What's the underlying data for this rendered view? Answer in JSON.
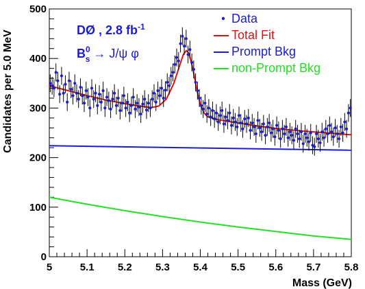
{
  "chart_data": {
    "type": "scatter",
    "xlabel": "Mass  (GeV)",
    "ylabel": "Candidates per 5.0 MeV",
    "xlim": [
      5.0,
      5.8
    ],
    "ylim": [
      0,
      500
    ],
    "x_ticks": [
      5,
      5.1,
      5.2,
      5.3,
      5.4,
      5.5,
      5.6,
      5.7,
      5.8
    ],
    "x_tick_labels": [
      "5",
      "5.1",
      "5.2",
      "5.3",
      "5.4",
      "5.5",
      "5.6",
      "5.7",
      "5.8"
    ],
    "y_ticks": [
      0,
      100,
      200,
      300,
      400,
      500
    ],
    "y_tick_labels": [
      "0",
      "100",
      "200",
      "300",
      "400",
      "500"
    ],
    "grid": false,
    "legend_position": "top-right",
    "annotations": {
      "experiment": "DØ , 2.8 fb",
      "experiment_sup": "-1",
      "decay_main": "B",
      "decay_sup": "0",
      "decay_sub": "s",
      "decay_rest": " → J/ψ φ"
    },
    "legend": [
      {
        "label": "Data",
        "color": "#1a1ad8",
        "marker": "dot"
      },
      {
        "label": "Total Fit",
        "color": "#e01010",
        "marker": "line"
      },
      {
        "label": "Prompt Bkg",
        "color": "#1a1ad8",
        "marker": "line"
      },
      {
        "label": "non-Prompt Bkg",
        "color": "#22e022",
        "marker": "line"
      }
    ],
    "series": [
      {
        "name": "Data",
        "kind": "points",
        "color": "#1a1ad8",
        "error": 18,
        "points": [
          [
            5.0025,
            350
          ],
          [
            5.0075,
            345
          ],
          [
            5.0125,
            340
          ],
          [
            5.0175,
            372
          ],
          [
            5.0225,
            355
          ],
          [
            5.0275,
            328
          ],
          [
            5.0325,
            365
          ],
          [
            5.0375,
            330
          ],
          [
            5.0425,
            348
          ],
          [
            5.0475,
            312
          ],
          [
            5.0525,
            355
          ],
          [
            5.0575,
            338
          ],
          [
            5.0625,
            325
          ],
          [
            5.0675,
            350
          ],
          [
            5.0725,
            330
          ],
          [
            5.0775,
            318
          ],
          [
            5.0825,
            342
          ],
          [
            5.0875,
            325
          ],
          [
            5.0925,
            310
          ],
          [
            5.0975,
            335
          ],
          [
            5.1025,
            322
          ],
          [
            5.1075,
            300
          ],
          [
            5.1125,
            340
          ],
          [
            5.1175,
            318
          ],
          [
            5.1225,
            330
          ],
          [
            5.1275,
            305
          ],
          [
            5.1325,
            328
          ],
          [
            5.1375,
            312
          ],
          [
            5.1425,
            335
          ],
          [
            5.1475,
            300
          ],
          [
            5.1525,
            322
          ],
          [
            5.1575,
            315
          ],
          [
            5.1625,
            298
          ],
          [
            5.1675,
            318
          ],
          [
            5.1725,
            330
          ],
          [
            5.1775,
            305
          ],
          [
            5.1825,
            320
          ],
          [
            5.1875,
            295
          ],
          [
            5.1925,
            310
          ],
          [
            5.1975,
            325
          ],
          [
            5.2025,
            300
          ],
          [
            5.2075,
            312
          ],
          [
            5.2125,
            290
          ],
          [
            5.2175,
            305
          ],
          [
            5.2225,
            322
          ],
          [
            5.2275,
            298
          ],
          [
            5.2325,
            310
          ],
          [
            5.2375,
            302
          ],
          [
            5.2425,
            288
          ],
          [
            5.2475,
            308
          ],
          [
            5.2525,
            318
          ],
          [
            5.2575,
            296
          ],
          [
            5.2625,
            310
          ],
          [
            5.2675,
            300
          ],
          [
            5.2725,
            318
          ],
          [
            5.2775,
            330
          ],
          [
            5.2825,
            312
          ],
          [
            5.2875,
            335
          ],
          [
            5.2925,
            325
          ],
          [
            5.2975,
            340
          ],
          [
            5.3025,
            320
          ],
          [
            5.3075,
            336
          ],
          [
            5.3125,
            352
          ],
          [
            5.3175,
            345
          ],
          [
            5.3225,
            365
          ],
          [
            5.3275,
            372
          ],
          [
            5.3325,
            388
          ],
          [
            5.3375,
            402
          ],
          [
            5.3425,
            395
          ],
          [
            5.3475,
            430
          ],
          [
            5.3525,
            445
          ],
          [
            5.3575,
            425
          ],
          [
            5.3625,
            440
          ],
          [
            5.3675,
            408
          ],
          [
            5.3725,
            418
          ],
          [
            5.3775,
            392
          ],
          [
            5.3825,
            378
          ],
          [
            5.3875,
            352
          ],
          [
            5.3925,
            335
          ],
          [
            5.3975,
            320
          ],
          [
            5.4025,
            305
          ],
          [
            5.4075,
            298
          ],
          [
            5.4125,
            310
          ],
          [
            5.4175,
            288
          ],
          [
            5.4225,
            300
          ],
          [
            5.4275,
            282
          ],
          [
            5.4325,
            295
          ],
          [
            5.4375,
            278
          ],
          [
            5.4425,
            290
          ],
          [
            5.4475,
            272
          ],
          [
            5.4525,
            285
          ],
          [
            5.4575,
            295
          ],
          [
            5.4625,
            268
          ],
          [
            5.4675,
            282
          ],
          [
            5.4725,
            275
          ],
          [
            5.4775,
            290
          ],
          [
            5.4825,
            265
          ],
          [
            5.4875,
            280
          ],
          [
            5.4925,
            272
          ],
          [
            5.4975,
            262
          ],
          [
            5.5025,
            285
          ],
          [
            5.5075,
            270
          ],
          [
            5.5125,
            258
          ],
          [
            5.5175,
            278
          ],
          [
            5.5225,
            268
          ],
          [
            5.5275,
            280
          ],
          [
            5.5325,
            255
          ],
          [
            5.5375,
            270
          ],
          [
            5.5425,
            262
          ],
          [
            5.5475,
            248
          ],
          [
            5.5525,
            275
          ],
          [
            5.5575,
            260
          ],
          [
            5.5625,
            252
          ],
          [
            5.5675,
            268
          ],
          [
            5.5725,
            245
          ],
          [
            5.5775,
            262
          ],
          [
            5.5825,
            270
          ],
          [
            5.5875,
            250
          ],
          [
            5.5925,
            258
          ],
          [
            5.5975,
            242
          ],
          [
            5.6025,
            265
          ],
          [
            5.6075,
            255
          ],
          [
            5.6125,
            238
          ],
          [
            5.6175,
            258
          ],
          [
            5.6225,
            248
          ],
          [
            5.6275,
            262
          ],
          [
            5.6325,
            240
          ],
          [
            5.6375,
            252
          ],
          [
            5.6425,
            245
          ],
          [
            5.6475,
            235
          ],
          [
            5.6525,
            258
          ],
          [
            5.6575,
            248
          ],
          [
            5.6625,
            238
          ],
          [
            5.6675,
            252
          ],
          [
            5.6725,
            228
          ],
          [
            5.6775,
            248
          ],
          [
            5.6825,
            240
          ],
          [
            5.6875,
            232
          ],
          [
            5.6925,
            250
          ],
          [
            5.6975,
            225
          ],
          [
            5.7025,
            222
          ],
          [
            5.7075,
            248
          ],
          [
            5.7125,
            238
          ],
          [
            5.7175,
            230
          ],
          [
            5.7225,
            252
          ],
          [
            5.7275,
            240
          ],
          [
            5.7325,
            258
          ],
          [
            5.7375,
            248
          ],
          [
            5.7425,
            265
          ],
          [
            5.7475,
            252
          ],
          [
            5.7525,
            242
          ],
          [
            5.7575,
            260
          ],
          [
            5.7625,
            248
          ],
          [
            5.7675,
            238
          ],
          [
            5.7725,
            262
          ],
          [
            5.7775,
            250
          ],
          [
            5.7825,
            272
          ],
          [
            5.7875,
            258
          ],
          [
            5.7925,
            290
          ],
          [
            5.7975,
            300
          ]
        ]
      },
      {
        "name": "Total Fit",
        "kind": "line",
        "color": "#e01010",
        "points": [
          [
            5.0,
            345
          ],
          [
            5.05,
            335
          ],
          [
            5.1,
            325
          ],
          [
            5.15,
            316
          ],
          [
            5.2,
            309
          ],
          [
            5.24,
            304
          ],
          [
            5.27,
            301
          ],
          [
            5.29,
            304
          ],
          [
            5.31,
            318
          ],
          [
            5.33,
            350
          ],
          [
            5.345,
            385
          ],
          [
            5.355,
            408
          ],
          [
            5.363,
            416
          ],
          [
            5.37,
            410
          ],
          [
            5.38,
            380
          ],
          [
            5.39,
            340
          ],
          [
            5.4,
            307
          ],
          [
            5.41,
            290
          ],
          [
            5.42,
            282
          ],
          [
            5.45,
            276
          ],
          [
            5.5,
            270
          ],
          [
            5.55,
            264
          ],
          [
            5.6,
            259
          ],
          [
            5.65,
            255
          ],
          [
            5.7,
            252
          ],
          [
            5.75,
            249
          ],
          [
            5.8,
            246
          ]
        ]
      },
      {
        "name": "Prompt Bkg",
        "kind": "line",
        "color": "#1a1ad8",
        "points": [
          [
            5.0,
            224
          ],
          [
            5.8,
            215
          ]
        ]
      },
      {
        "name": "non-Prompt Bkg",
        "kind": "line",
        "color": "#22e022",
        "points": [
          [
            5.0,
            120
          ],
          [
            5.1,
            106
          ],
          [
            5.2,
            93
          ],
          [
            5.3,
            81
          ],
          [
            5.4,
            70
          ],
          [
            5.5,
            60
          ],
          [
            5.6,
            51
          ],
          [
            5.7,
            42
          ],
          [
            5.8,
            35
          ]
        ]
      }
    ]
  }
}
